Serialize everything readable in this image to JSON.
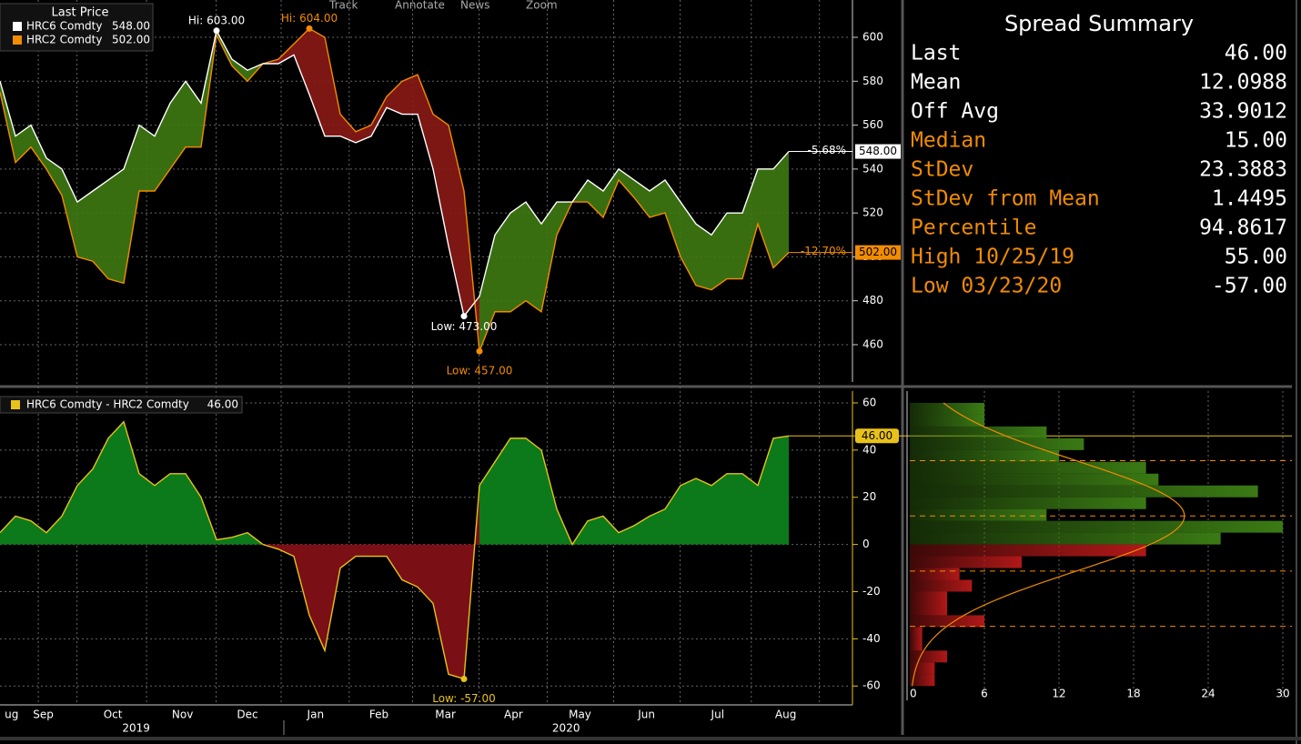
{
  "toolbar": [
    "Track",
    "Annotate",
    "News",
    "Zoom"
  ],
  "chart_data": [
    {
      "type": "line",
      "legend_title": "Last Price",
      "x": [
        0,
        1,
        2,
        3,
        4,
        5,
        6,
        7,
        8,
        9,
        10,
        11,
        12,
        13,
        14,
        15,
        16,
        17,
        18,
        19,
        20,
        21,
        22,
        23,
        24,
        25,
        26,
        27,
        28,
        29,
        30,
        31,
        32,
        33,
        34,
        35,
        36,
        37,
        38,
        39,
        40,
        41,
        42,
        43,
        44,
        45,
        46,
        47,
        48,
        49,
        50,
        51
      ],
      "xlim": [
        0,
        55
      ],
      "xticks": [
        {
          "value": 0.3,
          "label": "ug"
        },
        {
          "value": 2.8,
          "label": "Sep"
        },
        {
          "value": 7.3,
          "label": "Oct"
        },
        {
          "value": 11.8,
          "label": "Nov"
        },
        {
          "value": 16,
          "label": "Dec"
        },
        {
          "value": 20.4,
          "label": "Jan"
        },
        {
          "value": 24.5,
          "label": "Feb"
        },
        {
          "value": 28.8,
          "label": "Mar"
        },
        {
          "value": 33.2,
          "label": "Apr"
        },
        {
          "value": 37.5,
          "label": "May"
        },
        {
          "value": 41.8,
          "label": "Jun"
        },
        {
          "value": 46.4,
          "label": "Jul"
        },
        {
          "value": 50.8,
          "label": "Aug"
        }
      ],
      "years": [
        {
          "value": 8.8,
          "label": "2019"
        },
        {
          "value": 36.6,
          "label": "2020"
        }
      ],
      "ylim": [
        443,
        617
      ],
      "yticks": [
        460,
        480,
        500,
        520,
        540,
        560,
        580,
        600
      ],
      "grid": true,
      "up_color": "#3f7a12",
      "down_color": "#8a1a16",
      "series": [
        {
          "name": "HRC6 Comdty",
          "color": "#ffffff",
          "last": {
            "value": 548,
            "label": "548.00"
          },
          "change": {
            "value": -5.68,
            "label": "-5.68%"
          },
          "values": [
            580,
            555,
            560,
            545,
            540,
            525,
            530,
            535,
            540,
            560,
            555,
            570,
            580,
            570,
            603,
            590,
            585,
            588,
            588,
            592,
            574,
            555,
            555,
            552,
            555,
            568,
            565,
            565,
            540,
            505,
            473,
            482,
            510,
            520,
            525,
            515,
            525,
            525,
            535,
            530,
            540,
            535,
            530,
            535,
            525,
            515,
            510,
            520,
            520,
            540,
            540,
            548
          ],
          "annotations": [
            {
              "x": 14,
              "value": 603,
              "label": "Hi: 603.00"
            },
            {
              "x": 30,
              "value": 473,
              "label": "Low: 473.00"
            }
          ]
        },
        {
          "name": "HRC2 Comdty",
          "color": "#f28c00",
          "last": {
            "value": 502,
            "label": "502.00"
          },
          "change": {
            "value": -12.7,
            "label": "-12.70%"
          },
          "values": [
            575,
            543,
            550,
            540,
            528,
            500,
            498,
            490,
            488,
            530,
            530,
            540,
            550,
            550,
            601,
            587,
            580,
            588,
            590,
            597,
            604,
            600,
            565,
            557,
            560,
            573,
            580,
            583,
            565,
            560,
            530,
            457,
            475,
            475,
            480,
            475,
            510,
            525,
            525,
            518,
            535,
            527,
            518,
            520,
            500,
            487,
            485,
            490,
            490,
            515,
            495,
            502
          ],
          "annotations": [
            {
              "x": 20,
              "value": 604,
              "label": "Hi: 604.00"
            },
            {
              "x": 31,
              "value": 457,
              "label": "Low: 457.00"
            }
          ]
        }
      ]
    },
    {
      "type": "area",
      "x": [
        0,
        1,
        2,
        3,
        4,
        5,
        6,
        7,
        8,
        9,
        10,
        11,
        12,
        13,
        14,
        15,
        16,
        17,
        18,
        19,
        20,
        21,
        22,
        23,
        24,
        25,
        26,
        27,
        28,
        29,
        30,
        31,
        32,
        33,
        34,
        35,
        36,
        37,
        38,
        39,
        40,
        41,
        42,
        43,
        44,
        45,
        46,
        47,
        48,
        49,
        50,
        51
      ],
      "xlim": [
        0,
        55
      ],
      "ylim": [
        -68,
        65
      ],
      "yticks": [
        -60,
        -40,
        -20,
        0,
        20,
        40,
        60
      ],
      "grid": true,
      "up_color": "#0c7a1a",
      "down_color": "#7a0f16",
      "series": [
        {
          "name": "HRC6 Comdty - HRC2 Comdty",
          "color": "#e8c21a",
          "last": {
            "value": 46,
            "label": "46.00"
          },
          "values": [
            5,
            12,
            10,
            5,
            12,
            25,
            32,
            45,
            52,
            30,
            25,
            30,
            30,
            20,
            2,
            3,
            5,
            0,
            -2,
            -5,
            -30,
            -45,
            -10,
            -5,
            -5,
            -5,
            -15,
            -18,
            -25,
            -55,
            -57,
            25,
            35,
            45,
            45,
            40,
            15,
            0,
            10,
            12,
            5,
            8,
            12,
            15,
            25,
            28,
            25,
            30,
            30,
            25,
            45,
            46
          ],
          "annotations": [
            {
              "x": 30,
              "value": -57,
              "label": "Low: -57.00"
            }
          ]
        }
      ]
    },
    {
      "type": "histogram",
      "orientation": "horizontal",
      "bins": [
        -60,
        -55,
        -50,
        -45,
        -40,
        -35,
        -30,
        -25,
        -20,
        -15,
        -10,
        -5,
        0,
        5,
        10,
        15,
        20,
        25,
        30,
        35,
        40,
        45,
        50,
        55,
        60
      ],
      "values": [
        2,
        2,
        3,
        1,
        1,
        6,
        3,
        3,
        5,
        4,
        9,
        19,
        25,
        30,
        11,
        19,
        28,
        20,
        19,
        12,
        14,
        11,
        6,
        6
      ],
      "xlim": [
        0,
        30
      ],
      "xticks": [
        0,
        6,
        12,
        18,
        24,
        30
      ],
      "up_color": "#3a7a14",
      "down_color": "#b01818",
      "curve_color": "#f28c00"
    }
  ],
  "summary": {
    "title": "Spread Summary",
    "rows": [
      {
        "label": "Last",
        "value": "46.00",
        "color": "#ffffff"
      },
      {
        "label": "Mean",
        "value": "12.0988",
        "color": "#ffffff"
      },
      {
        "label": "Off Avg",
        "value": "33.9012",
        "color": "#ffffff"
      },
      {
        "label": "Median",
        "value": "15.00",
        "color": "#f28c00"
      },
      {
        "label": "StDev",
        "value": "23.3883",
        "color": "#f28c00"
      },
      {
        "label": "StDev from Mean",
        "value": "1.4495",
        "color": "#f28c00"
      },
      {
        "label": "Percentile",
        "value": "94.8617",
        "color": "#f28c00"
      },
      {
        "label": "High 10/25/19",
        "value": "55.00",
        "color": "#f28c00"
      },
      {
        "label": "Low 03/23/20",
        "value": "-57.00",
        "color": "#f28c00"
      }
    ]
  }
}
